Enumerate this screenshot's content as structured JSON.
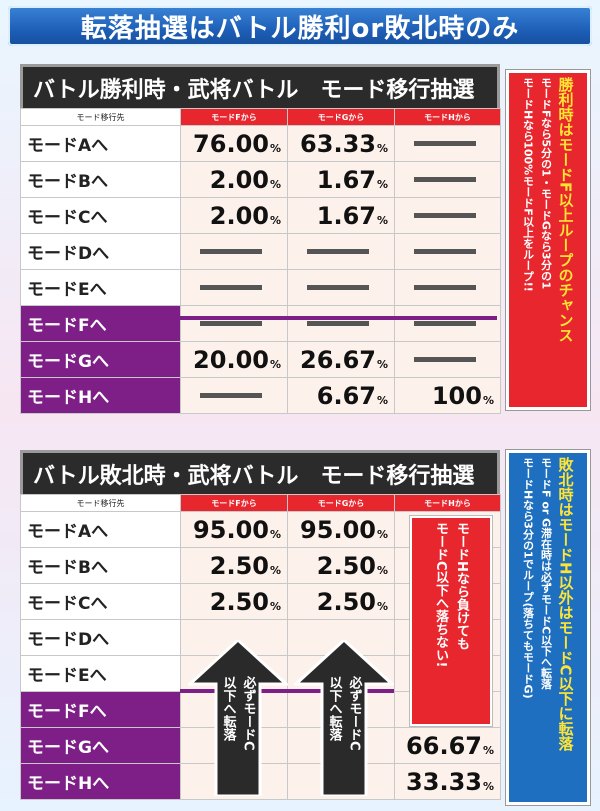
{
  "banner": "転落抽選はバトル勝利or敗北時のみ",
  "win_panel": {
    "title": "バトル勝利時・武将バトル　モード移行抽選",
    "headers": [
      "モード移行先",
      "モードFから",
      "モードGから",
      "モードHから"
    ],
    "rows": [
      {
        "label": "モードAへ",
        "cells": [
          "76.00",
          "63.33",
          "—"
        ]
      },
      {
        "label": "モードBへ",
        "cells": [
          "2.00",
          "1.67",
          "—"
        ]
      },
      {
        "label": "モードCへ",
        "cells": [
          "2.00",
          "1.67",
          "—"
        ]
      },
      {
        "label": "モードDへ",
        "cells": [
          "—",
          "—",
          "—"
        ]
      },
      {
        "label": "モードEへ",
        "cells": [
          "—",
          "—",
          "—"
        ]
      },
      {
        "label": "モードFへ",
        "cells": [
          "—",
          "—",
          "—"
        ]
      },
      {
        "label": "モードGへ",
        "cells": [
          "20.00",
          "26.67",
          "—"
        ]
      },
      {
        "label": "モードHへ",
        "cells": [
          "—",
          "6.67",
          "100"
        ]
      }
    ],
    "callout": {
      "headline": "勝利時はモードF以上ループのチャンス",
      "line1": "モードFなら5分の1・モードGなら3分の1",
      "line2": "モードHなら100%モードF以上をループ!!"
    }
  },
  "lose_panel": {
    "title": "バトル敗北時・武将バトル　モード移行抽選",
    "headers": [
      "モード移行先",
      "モードFから",
      "モードGから",
      "モードHから"
    ],
    "rows": [
      {
        "label": "モードAへ",
        "cells": [
          "95.00",
          "95.00",
          ""
        ]
      },
      {
        "label": "モードBへ",
        "cells": [
          "2.50",
          "2.50",
          ""
        ]
      },
      {
        "label": "モードCへ",
        "cells": [
          "2.50",
          "2.50",
          ""
        ]
      },
      {
        "label": "モードDへ",
        "cells": [
          "",
          "",
          ""
        ]
      },
      {
        "label": "モードEへ",
        "cells": [
          "",
          "",
          ""
        ]
      },
      {
        "label": "モードFへ",
        "cells": [
          "",
          "",
          ""
        ]
      },
      {
        "label": "モードGへ",
        "cells": [
          "",
          "",
          "66.67"
        ]
      },
      {
        "label": "モードHへ",
        "cells": [
          "",
          "",
          "33.33"
        ]
      }
    ],
    "arrow_f": [
      "必ずモードC",
      "以下へ転落"
    ],
    "arrow_g": [
      "必ずモードC",
      "以下へ転落"
    ],
    "h_note": [
      "モードHなら負けても",
      "モードC以下へ落ちない!"
    ],
    "callout": {
      "headline": "敗北時はモードH以外はモードC以下に転落",
      "line1": "モードF or G滞在時は必ずモードC以下へ転落",
      "line2": "モードHなら3分の1でループ(落ちてもモードG)"
    }
  },
  "pct_sign": "%",
  "colors": {
    "red": "#e8262e",
    "purple": "#7d1f86",
    "blue": "#1e5fb8",
    "cell": "#fdf1ec"
  }
}
